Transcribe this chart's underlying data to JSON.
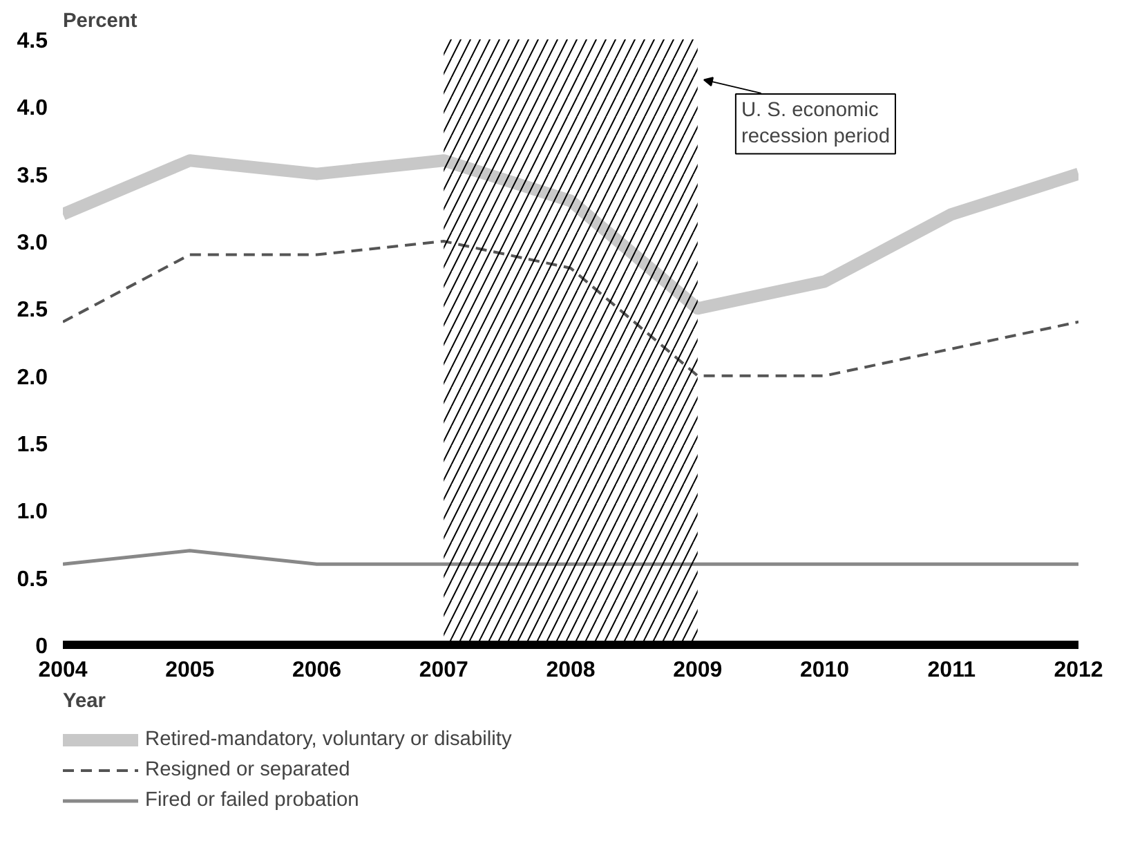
{
  "chart_data": {
    "type": "line",
    "ylabel": "Percent",
    "xlabel": "Year",
    "x": [
      2004,
      2005,
      2006,
      2007,
      2008,
      2009,
      2010,
      2011,
      2012
    ],
    "series": [
      {
        "name": "Retired-mandatory, voluntary or disability",
        "color": "#c8c8c8",
        "values": [
          3.2,
          3.6,
          3.5,
          3.6,
          3.3,
          2.5,
          2.7,
          3.2,
          3.5
        ]
      },
      {
        "name": "Resigned or separated",
        "color": "#555555",
        "line_style": "dashed",
        "values": [
          2.4,
          2.9,
          2.9,
          3.0,
          2.8,
          2.0,
          2.0,
          2.2,
          2.4
        ]
      },
      {
        "name": "Fired or failed probation",
        "color": "#888888",
        "values": [
          0.6,
          0.7,
          0.6,
          0.6,
          0.6,
          0.6,
          0.6,
          0.6,
          0.6
        ]
      }
    ],
    "xlim": [
      2004,
      2012
    ],
    "xticks": [
      2004,
      2005,
      2006,
      2007,
      2008,
      2009,
      2010,
      2011,
      2012
    ],
    "ylim": [
      0,
      4.5
    ],
    "yticks": [
      0,
      {
        "value": 0.5,
        "label": "0.5"
      },
      {
        "value": 1,
        "label": "1.0"
      },
      1.5,
      {
        "value": 2,
        "label": "2.0"
      },
      2.5,
      {
        "value": 3,
        "label": "3.0"
      },
      3.5,
      {
        "value": 4,
        "label": "4.0"
      },
      4.5
    ],
    "bands": [
      {
        "axis": "x",
        "from": 2007,
        "to": 2009,
        "color": "#000000"
      }
    ],
    "annotations": [
      {
        "text": "U. S. economic\nrecession period",
        "x": 2009,
        "y": 4.2
      }
    ],
    "grid": false,
    "legend": "bottom",
    "marker": "none",
    "line_style": "solid"
  }
}
